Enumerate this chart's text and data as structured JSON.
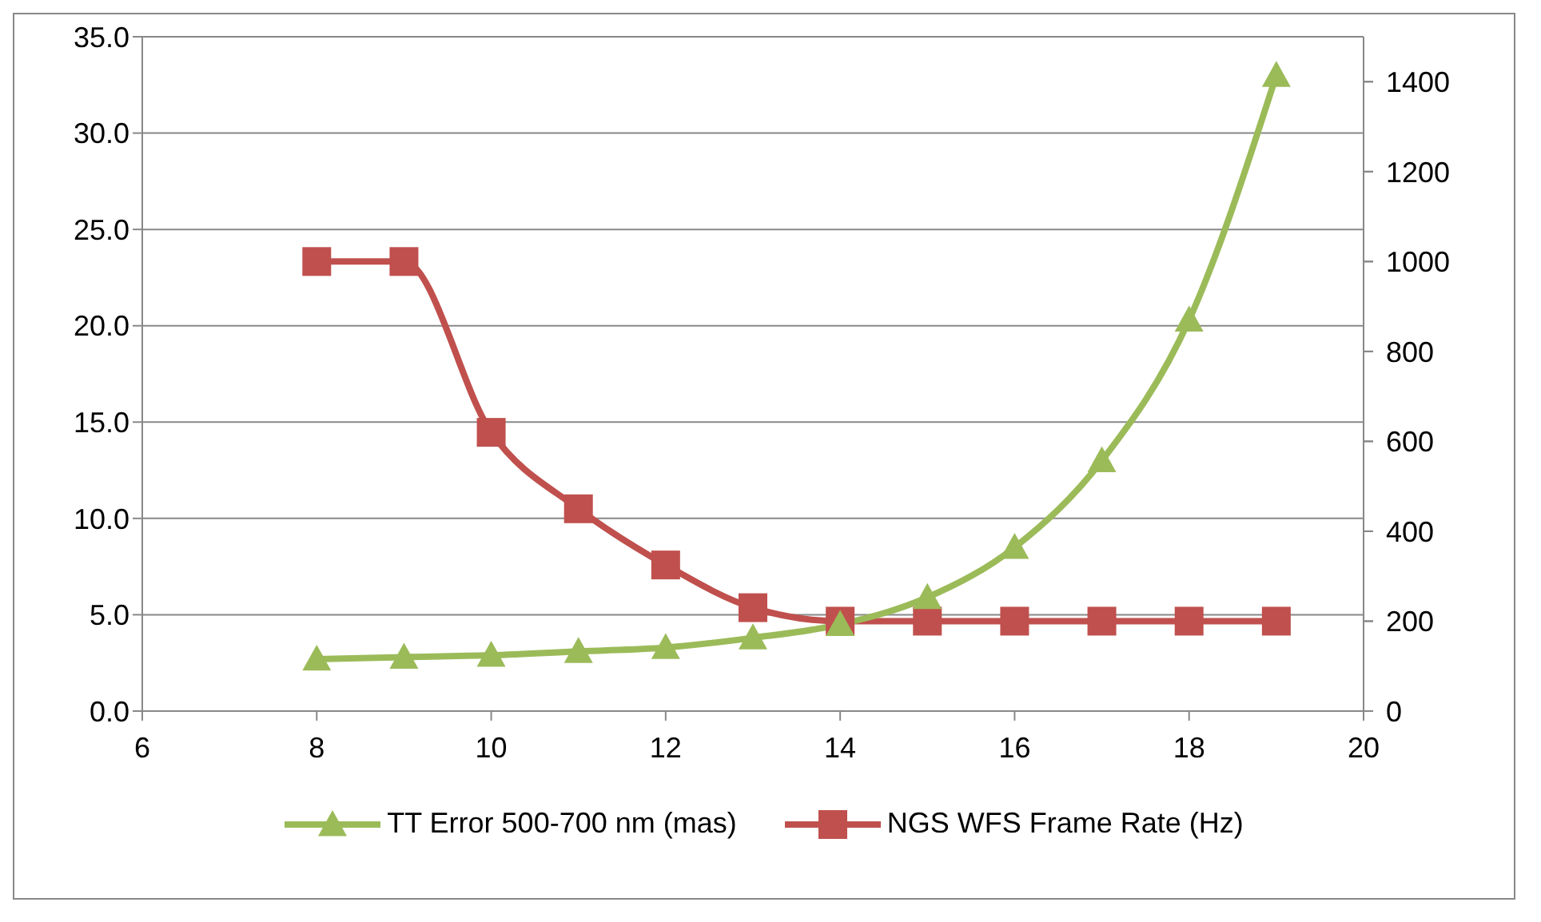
{
  "chart_data": {
    "type": "line",
    "x": [
      8,
      9,
      10,
      11,
      12,
      13,
      14,
      15,
      16,
      17,
      18,
      19
    ],
    "series": [
      {
        "name": "TT Error 500-700 nm (mas)",
        "color": "#9bbb59",
        "marker": "triangle",
        "values": [
          2.7,
          2.8,
          2.9,
          3.1,
          3.3,
          3.8,
          4.5,
          5.9,
          8.5,
          13.0,
          20.3,
          33.0
        ]
      },
      {
        "name": "NGS WFS Frame Rate (Hz)",
        "color": "#c0504d",
        "marker": "square",
        "axis": "y2",
        "values": [
          1000,
          1000,
          620,
          450,
          325,
          230,
          200,
          200,
          200,
          200,
          200,
          200
        ]
      }
    ],
    "xlim": [
      6,
      20
    ],
    "xticks": [
      6,
      8,
      10,
      12,
      14,
      16,
      18,
      20
    ],
    "ylim": [
      0,
      35
    ],
    "yticks": [
      {
        "value": 0,
        "label": "0.0"
      },
      {
        "value": 5,
        "label": "5.0"
      },
      {
        "value": 10,
        "label": "10.0"
      },
      {
        "value": 15,
        "label": "15.0"
      },
      {
        "value": 20,
        "label": "20.0"
      },
      {
        "value": 25,
        "label": "25.0"
      },
      {
        "value": 30,
        "label": "30.0"
      },
      {
        "value": 35,
        "label": "35.0"
      }
    ],
    "y2lim": [
      0,
      1500
    ],
    "y2ticks": [
      0,
      200,
      400,
      600,
      800,
      1000,
      1200,
      1400
    ],
    "grid": "y",
    "legend": "bottom"
  }
}
